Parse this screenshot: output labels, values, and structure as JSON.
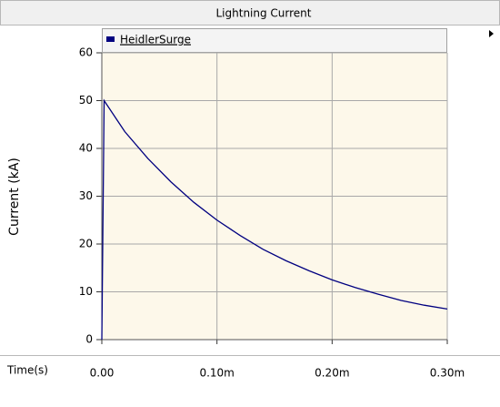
{
  "chart_data": {
    "type": "line",
    "title": "Lightning Current",
    "ylabel": "Current (kA)",
    "xlabel": "Time(s)",
    "x": [
      0,
      2e-06,
      2e-05,
      4e-05,
      6e-05,
      8e-05,
      0.0001,
      0.00012,
      0.00014,
      0.00016,
      0.00018,
      0.0002,
      0.00022,
      0.00024,
      0.00026,
      0.00028,
      0.0003
    ],
    "series": [
      {
        "name": "HeidlerSurge",
        "color": "#000080",
        "values": [
          0,
          50,
          43.5,
          37.9,
          33.0,
          28.7,
          25,
          21.8,
          18.9,
          16.5,
          14.4,
          12.5,
          10.9,
          9.5,
          8.2,
          7.2,
          6.4
        ]
      }
    ],
    "xlim": [
      0,
      0.0003
    ],
    "ylim": [
      0,
      60
    ],
    "xticks": [
      {
        "value": 0,
        "label": "0.00"
      },
      {
        "value": 0.0001,
        "label": "0.10m"
      },
      {
        "value": 0.0002,
        "label": "0.20m"
      },
      {
        "value": 0.0003,
        "label": "0.30m"
      }
    ],
    "yticks": [
      0,
      10,
      20,
      30,
      40,
      50,
      60
    ],
    "grid": true,
    "background": "#fdf8ea"
  }
}
